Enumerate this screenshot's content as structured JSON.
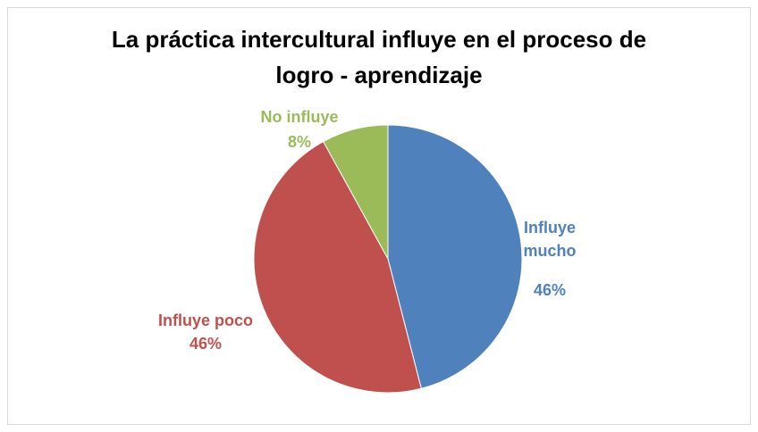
{
  "chart_data": {
    "type": "pie",
    "title": "La práctica intercultural influye en el proceso de logro - aprendizaje",
    "categories": [
      "Influye mucho",
      "Influye poco",
      "No influye"
    ],
    "values": [
      46,
      46,
      8
    ],
    "value_labels": [
      "46%",
      "46%",
      "8%"
    ],
    "colors": [
      "#4f81bd",
      "#c0504d",
      "#9bbb59"
    ]
  }
}
